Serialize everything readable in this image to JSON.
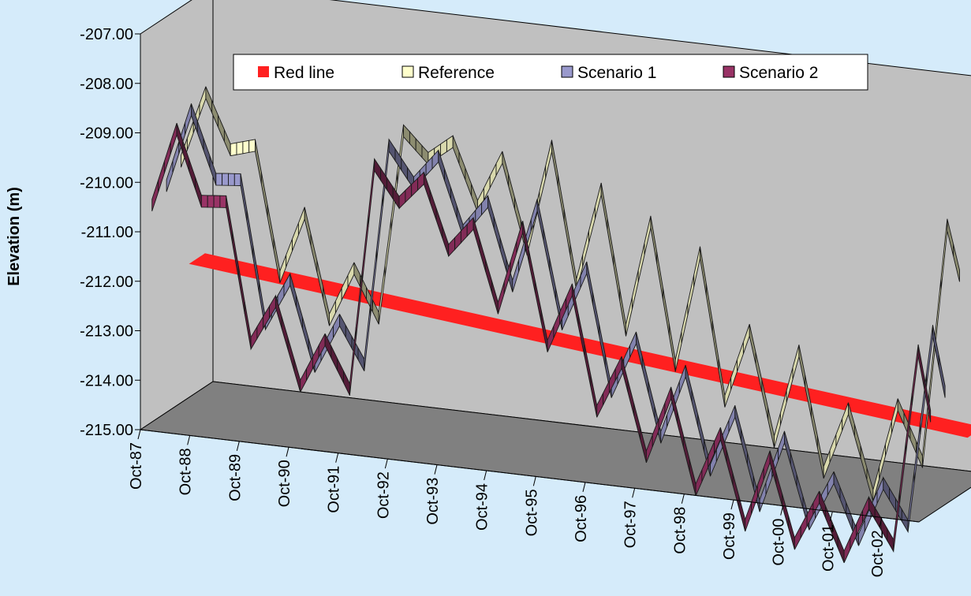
{
  "chart_data": {
    "type": "line",
    "style": "3d-ribbon",
    "title": "",
    "xlabel": "",
    "ylabel": "Elevation (m)",
    "ylim": [
      -215,
      -207
    ],
    "y_ticks": [
      "-207.00",
      "-208.00",
      "-209.00",
      "-210.00",
      "-211.00",
      "-212.00",
      "-213.00",
      "-214.00",
      "-215.00"
    ],
    "x_ticks": [
      "Oct-87",
      "Oct-88",
      "Oct-89",
      "Oct-90",
      "Oct-91",
      "Oct-92",
      "Oct-93",
      "Oct-94",
      "Oct-95",
      "Oct-96",
      "Oct-97",
      "Oct-98",
      "Oct-99",
      "Oct-00",
      "Oct-01",
      "Oct-02"
    ],
    "legend_position": "top",
    "grid": false,
    "colors": {
      "background": "#d5ebfa",
      "wall": "#c0c0c0",
      "floor": "#808080",
      "red_line": "#ff2020",
      "reference": "#ffffcc",
      "scenario_1": "#9999cc",
      "scenario_2": "#993366"
    },
    "series": [
      {
        "name": "Red line",
        "color": "#ff2020",
        "x": [
          1987.75,
          2003.5
        ],
        "y": [
          -212.3,
          -213.95
        ]
      },
      {
        "name": "Reference",
        "color": "#ffffcc",
        "x": [
          1987.75,
          1988.25,
          1988.75,
          1989.25,
          1989.75,
          1990.25,
          1990.75,
          1991.25,
          1991.75,
          1992.25,
          1992.75,
          1993.25,
          1993.75,
          1994.25,
          1994.75,
          1995.25,
          1995.75,
          1996.25,
          1996.75,
          1997.25,
          1997.75,
          1998.25,
          1998.75,
          1999.25,
          1999.75,
          2000.25,
          2000.75,
          2001.25,
          2001.75,
          2002.25,
          2002.75,
          2003.25,
          2003.5
        ],
        "y": [
          -210.0,
          -208.55,
          -209.65,
          -209.5,
          -212.1,
          -210.75,
          -212.85,
          -211.75,
          -212.7,
          -208.85,
          -209.35,
          -208.95,
          -210.2,
          -209.15,
          -210.95,
          -208.8,
          -211.55,
          -209.55,
          -212.35,
          -210.1,
          -212.95,
          -210.6,
          -213.55,
          -212.05,
          -214.25,
          -212.35,
          -214.75,
          -213.4,
          -215.1,
          -213.2,
          -214.3,
          -209.45,
          -210.45
        ]
      },
      {
        "name": "Scenario 1",
        "color": "#9999cc",
        "x": [
          1987.75,
          1988.25,
          1988.75,
          1989.25,
          1989.75,
          1990.25,
          1990.75,
          1991.25,
          1991.75,
          1992.25,
          1992.75,
          1993.25,
          1993.75,
          1994.25,
          1994.75,
          1995.25,
          1995.75,
          1996.25,
          1996.75,
          1997.25,
          1997.75,
          1998.25,
          1998.75,
          1999.25,
          1999.75,
          2000.25,
          2000.75,
          2001.25,
          2001.75,
          2002.25,
          2002.75,
          2003.25,
          2003.5
        ],
        "y": [
          -210.3,
          -208.7,
          -210.05,
          -210.0,
          -212.85,
          -211.9,
          -213.6,
          -212.6,
          -213.45,
          -208.95,
          -209.65,
          -209.05,
          -210.5,
          -209.85,
          -211.5,
          -209.8,
          -212.15,
          -210.95,
          -213.4,
          -212.25,
          -214.2,
          -212.8,
          -214.75,
          -213.5,
          -215.35,
          -213.9,
          -215.6,
          -214.6,
          -215.8,
          -214.6,
          -215.4,
          -211.4,
          -212.6
        ]
      },
      {
        "name": "Scenario 2",
        "color": "#993366",
        "x": [
          1987.75,
          1988.25,
          1988.75,
          1989.25,
          1989.75,
          1990.25,
          1990.75,
          1991.25,
          1991.75,
          1992.25,
          1992.75,
          1993.25,
          1993.75,
          1994.25,
          1994.75,
          1995.25,
          1995.75,
          1996.25,
          1996.75,
          1997.25,
          1997.75,
          1998.25,
          1998.75,
          1999.25,
          1999.75,
          2000.25,
          2000.75,
          2001.25,
          2001.75,
          2002.25,
          2002.75,
          2003.25,
          2003.5
        ],
        "y": [
          -210.5,
          -208.9,
          -210.3,
          -210.25,
          -213.05,
          -212.15,
          -213.8,
          -212.8,
          -213.75,
          -209.15,
          -209.85,
          -209.3,
          -210.7,
          -210.1,
          -211.75,
          -210.05,
          -212.4,
          -211.2,
          -213.6,
          -212.55,
          -214.4,
          -213.05,
          -214.95,
          -213.75,
          -215.55,
          -214.1,
          -215.8,
          -214.8,
          -215.95,
          -214.8,
          -215.6,
          -211.6,
          -212.9
        ]
      }
    ]
  }
}
